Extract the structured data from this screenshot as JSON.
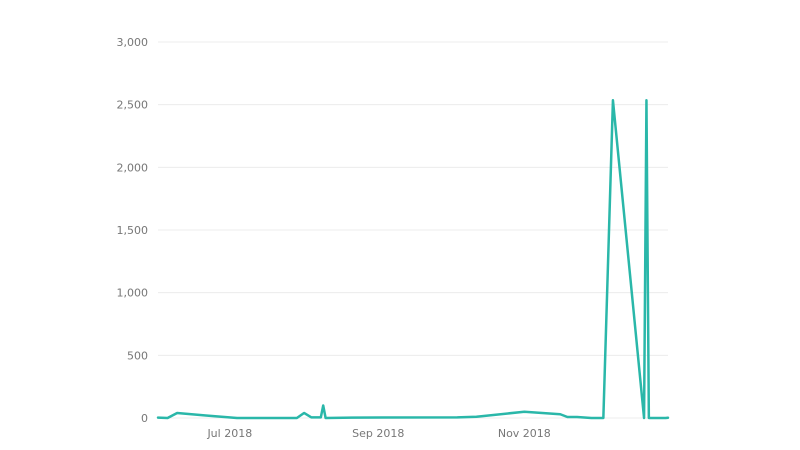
{
  "chart_data": {
    "type": "line",
    "title": "",
    "xlabel": "",
    "ylabel": "",
    "grid": true,
    "legend": "none",
    "x_axis_type": "date",
    "x_range": [
      "2018-06-01",
      "2018-12-31"
    ],
    "ylim": [
      0,
      3000
    ],
    "y_ticks": [
      0,
      500,
      1000,
      1500,
      2000,
      2500,
      3000
    ],
    "y_tick_labels": [
      "0",
      "500",
      "1,000",
      "1,500",
      "2,000",
      "2,500",
      "3,000"
    ],
    "x_ticks": [
      {
        "date": "2018-07-01",
        "label": "Jul 2018"
      },
      {
        "date": "2018-09-01",
        "label": "Sep 2018"
      },
      {
        "date": "2018-11-01",
        "label": "Nov 2018"
      }
    ],
    "series": [
      {
        "color": "#2ab7a9",
        "points": [
          {
            "x": "2018-06-01",
            "y": 3
          },
          {
            "x": "2018-06-05",
            "y": 0
          },
          {
            "x": "2018-06-09",
            "y": 40
          },
          {
            "x": "2018-06-21",
            "y": 20
          },
          {
            "x": "2018-07-04",
            "y": 0
          },
          {
            "x": "2018-07-29",
            "y": 0
          },
          {
            "x": "2018-08-01",
            "y": 40
          },
          {
            "x": "2018-08-04",
            "y": 5
          },
          {
            "x": "2018-08-08",
            "y": 5
          },
          {
            "x": "2018-08-09",
            "y": 100
          },
          {
            "x": "2018-08-10",
            "y": 0
          },
          {
            "x": "2018-08-21",
            "y": 3
          },
          {
            "x": "2018-10-04",
            "y": 5
          },
          {
            "x": "2018-10-12",
            "y": 10
          },
          {
            "x": "2018-11-01",
            "y": 50
          },
          {
            "x": "2018-11-16",
            "y": 30
          },
          {
            "x": "2018-11-19",
            "y": 8
          },
          {
            "x": "2018-11-23",
            "y": 8
          },
          {
            "x": "2018-11-29",
            "y": 0
          },
          {
            "x": "2018-12-04",
            "y": 0
          },
          {
            "x": "2018-12-08",
            "y": 2535
          },
          {
            "x": "2018-12-21",
            "y": 0
          },
          {
            "x": "2018-12-22",
            "y": 2535
          },
          {
            "x": "2018-12-23",
            "y": 0
          },
          {
            "x": "2018-12-30",
            "y": 0
          },
          {
            "x": "2018-12-31",
            "y": 2
          }
        ]
      }
    ]
  }
}
